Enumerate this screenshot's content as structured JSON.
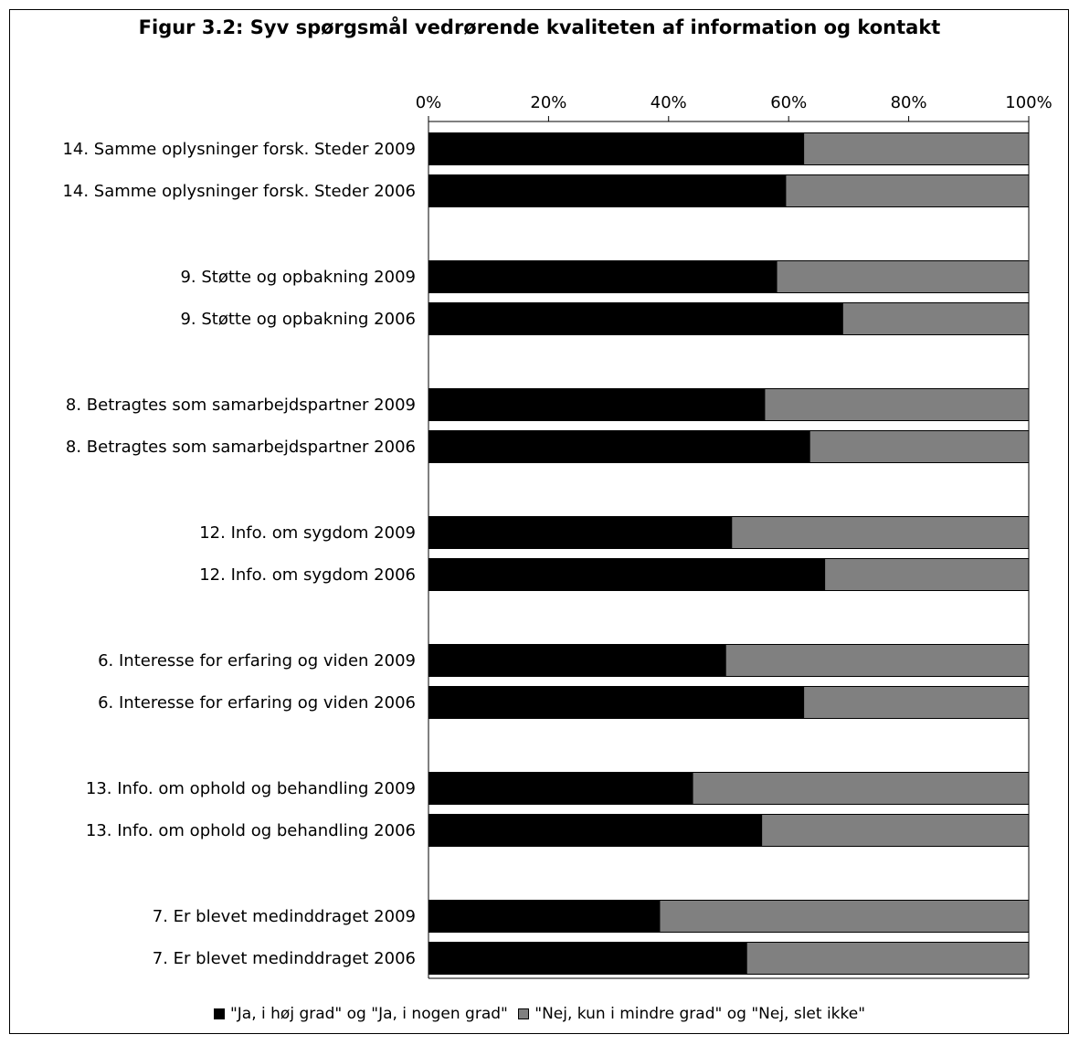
{
  "chart_data": {
    "type": "bar",
    "orientation": "horizontal",
    "stacked": "percent",
    "title": "Figur 3.2: Syv spørgsmål vedrørende kvaliteten af information og kontakt",
    "xlim": [
      0,
      100
    ],
    "x_ticks": [
      "0%",
      "20%",
      "40%",
      "60%",
      "80%",
      "100%"
    ],
    "x_tick_values": [
      0,
      20,
      40,
      60,
      80,
      100
    ],
    "x_axis_position": "top",
    "grid": false,
    "legend_position": "bottom",
    "colors": {
      "series1": "#000000",
      "series2": "#808080"
    },
    "categories": [
      "14. Samme oplysninger forsk. Steder 2009",
      "14. Samme oplysninger forsk. Steder 2006",
      "9. Støtte og opbakning 2009",
      "9. Støtte og opbakning 2006",
      "8. Betragtes som samarbejdspartner 2009",
      "8. Betragtes som samarbejdspartner 2006",
      "12. Info. om sygdom 2009",
      "12. Info. om sygdom 2006",
      "6. Interesse for erfaring og viden 2009",
      "6. Interesse for erfaring og viden 2006",
      "13. Info. om ophold og behandling 2009",
      "13. Info. om ophold og behandling 2006",
      "7. Er blevet medinddraget 2009",
      "7. Er blevet medinddraget 2006"
    ],
    "series": [
      {
        "name": "\"Ja, i høj grad\" og \"Ja, i nogen grad\"",
        "values": [
          62.5,
          59.5,
          58,
          69,
          56,
          63.5,
          50.5,
          66,
          49.5,
          62.5,
          44,
          55.5,
          38.5,
          53
        ]
      },
      {
        "name": "\"Nej, kun i mindre grad\" og \"Nej, slet ikke\"",
        "values": [
          37.5,
          40.5,
          42,
          31,
          44,
          36.5,
          49.5,
          34,
          50.5,
          37.5,
          56,
          44.5,
          61.5,
          47
        ]
      }
    ]
  }
}
